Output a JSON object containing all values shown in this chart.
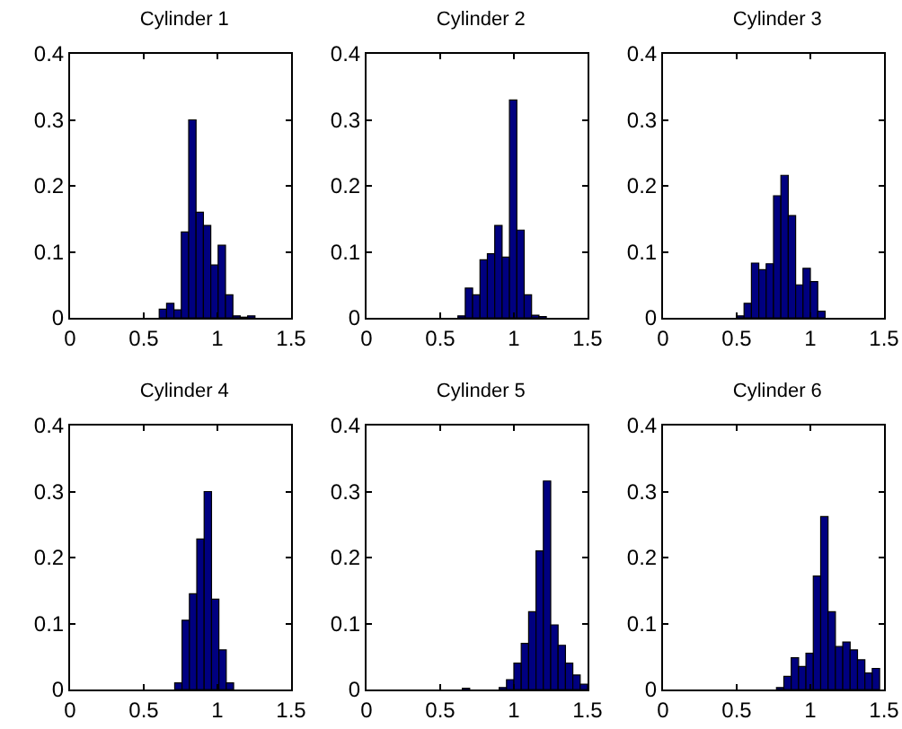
{
  "chart_data": [
    {
      "type": "histogram",
      "title": "Cylinder 1",
      "bins": [
        0.605,
        0.655,
        0.705,
        0.755,
        0.805,
        0.855,
        0.905,
        0.955,
        1.005,
        1.055,
        1.105,
        1.155,
        1.205,
        1.255
      ],
      "values": [
        0.013,
        0.022,
        0.012,
        0.13,
        0.3,
        0.16,
        0.14,
        0.08,
        0.11,
        0.035,
        0.003,
        0.001,
        0.003
      ],
      "color": "#000080",
      "xlim": [
        0,
        1.5
      ],
      "xticks": [
        0,
        0.5,
        1,
        1.5
      ],
      "ylim": [
        0,
        0.4
      ],
      "yticks": [
        0,
        0.1,
        0.2,
        0.3,
        0.4
      ],
      "grid": false
    },
    {
      "type": "histogram",
      "title": "Cylinder 2",
      "bins": [
        0.62,
        0.67,
        0.72,
        0.77,
        0.82,
        0.87,
        0.92,
        0.97,
        1.02,
        1.07,
        1.12,
        1.17,
        1.22
      ],
      "values": [
        0.003,
        0.045,
        0.035,
        0.088,
        0.097,
        0.14,
        0.092,
        0.33,
        0.133,
        0.035,
        0.004,
        0.002
      ],
      "color": "#000080",
      "xlim": [
        0,
        1.5
      ],
      "xticks": [
        0,
        0.5,
        1,
        1.5
      ],
      "ylim": [
        0,
        0.4
      ],
      "yticks": [
        0,
        0.1,
        0.2,
        0.3,
        0.4
      ],
      "grid": false
    },
    {
      "type": "histogram",
      "title": "Cylinder 3",
      "bins": [
        0.5,
        0.55,
        0.6,
        0.65,
        0.7,
        0.75,
        0.8,
        0.85,
        0.9,
        0.95,
        1.0,
        1.05,
        1.1
      ],
      "values": [
        0.003,
        0.022,
        0.083,
        0.073,
        0.082,
        0.185,
        0.216,
        0.155,
        0.05,
        0.075,
        0.055,
        0.01
      ],
      "color": "#000080",
      "xlim": [
        0,
        1.5
      ],
      "xticks": [
        0,
        0.5,
        1,
        1.5
      ],
      "ylim": [
        0,
        0.4
      ],
      "yticks": [
        0,
        0.1,
        0.2,
        0.3,
        0.4
      ],
      "grid": false
    },
    {
      "type": "histogram",
      "title": "Cylinder 4",
      "bins": [
        0.71,
        0.76,
        0.81,
        0.86,
        0.91,
        0.96,
        1.01,
        1.06,
        1.11
      ],
      "values": [
        0.01,
        0.105,
        0.145,
        0.228,
        0.3,
        0.137,
        0.06,
        0.01
      ],
      "color": "#000080",
      "xlim": [
        0,
        1.5
      ],
      "xticks": [
        0,
        0.5,
        1,
        1.5
      ],
      "ylim": [
        0,
        0.4
      ],
      "yticks": [
        0,
        0.1,
        0.2,
        0.3,
        0.4
      ],
      "grid": false
    },
    {
      "type": "histogram",
      "title": "Cylinder 5",
      "bins": [
        0.65,
        0.7,
        0.75,
        0.8,
        0.85,
        0.9,
        0.95,
        1.0,
        1.05,
        1.1,
        1.15,
        1.2,
        1.25,
        1.3,
        1.35,
        1.4,
        1.45,
        1.5
      ],
      "values": [
        0.002,
        0,
        0,
        0,
        0,
        0.003,
        0.015,
        0.04,
        0.07,
        0.118,
        0.21,
        0.316,
        0.098,
        0.067,
        0.04,
        0.022,
        0.008
      ],
      "color": "#000080",
      "xlim": [
        0,
        1.5
      ],
      "xticks": [
        0,
        0.5,
        1,
        1.5
      ],
      "ylim": [
        0,
        0.4
      ],
      "yticks": [
        0,
        0.1,
        0.2,
        0.3,
        0.4
      ],
      "grid": false
    },
    {
      "type": "histogram",
      "title": "Cylinder 6",
      "bins": [
        0.77,
        0.82,
        0.87,
        0.92,
        0.97,
        1.02,
        1.07,
        1.12,
        1.17,
        1.22,
        1.27,
        1.32,
        1.37,
        1.42,
        1.47
      ],
      "values": [
        0.003,
        0.02,
        0.048,
        0.035,
        0.055,
        0.172,
        0.262,
        0.118,
        0.065,
        0.072,
        0.06,
        0.045,
        0.025,
        0.032
      ],
      "color": "#000080",
      "xlim": [
        0,
        1.5
      ],
      "xticks": [
        0,
        0.5,
        1,
        1.5
      ],
      "ylim": [
        0,
        0.4
      ],
      "yticks": [
        0,
        0.1,
        0.2,
        0.3,
        0.4
      ],
      "grid": false
    }
  ]
}
